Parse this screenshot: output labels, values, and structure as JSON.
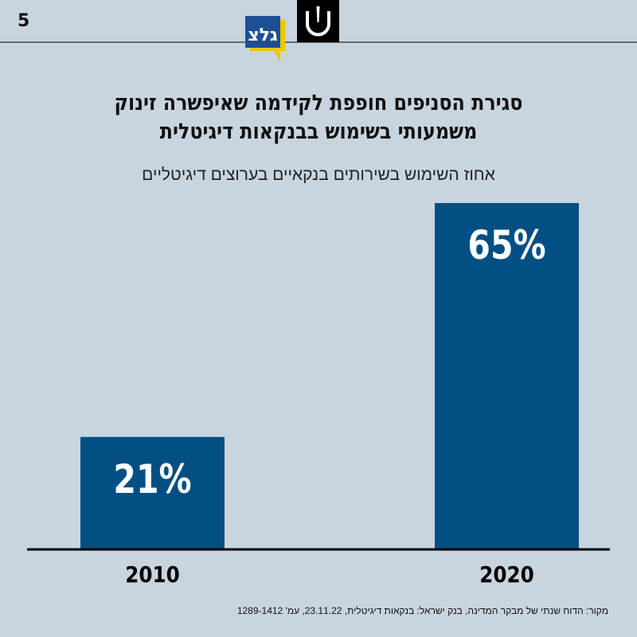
{
  "page_number": "5",
  "logos": {
    "left": "galatz-logo",
    "right": "u-logo",
    "galatz_text": "גלצ"
  },
  "title_lines": [
    "סגירת הסניפים חופפת לקידמה שאיפשרה זינוק",
    "משמעותי בשימוש בבנקאות דיגיטלית"
  ],
  "subtitle": "אחוז השימוש בשירותים בנקאיים בערוצים דיגיטליים",
  "source": "מקור: הדוח שנתי של מבקר המדינה, בנק ישראל: בנקאות דיגיטלית, 23.11.22, עמ' 1289-1412",
  "colors": {
    "bar": "#034f84",
    "background": "#c9d5de",
    "axis": "#000000",
    "label_on_bar": "#ffffff"
  },
  "chart_data": {
    "type": "bar",
    "title": "סגירת הסניפים חופפת לקידמה שאיפשרה זינוק משמעותי בשימוש בבנקאות דיגיטלית",
    "subtitle": "אחוז השימוש בשירותים בנקאיים בערוצים דיגיטליים",
    "categories": [
      "2010",
      "2020"
    ],
    "values": [
      21,
      65
    ],
    "data_labels": [
      "21%",
      "65%"
    ],
    "xlabel": "",
    "ylabel": "",
    "ylim": [
      0,
      65
    ],
    "grid": false,
    "legend": "none"
  }
}
